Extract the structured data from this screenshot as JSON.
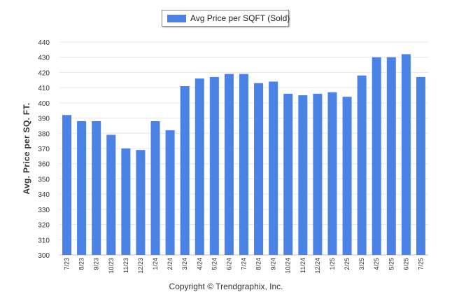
{
  "chart_data": {
    "type": "bar",
    "ylabel": "Avg. Price per SQ. FT.",
    "ylim": [
      300,
      440
    ],
    "ytick_step": 10,
    "grid": true,
    "legend_position": "top-center",
    "series": [
      {
        "name": "Avg Price per SQFT (Sold)",
        "color": "#4a82e6",
        "values": [
          392,
          388,
          388,
          379,
          370,
          369,
          388,
          382,
          411,
          416,
          417,
          419,
          419,
          413,
          414,
          406,
          405,
          406,
          407,
          404,
          418,
          430,
          430,
          432,
          417
        ]
      }
    ],
    "categories": [
      "7/23",
      "8/23",
      "9/23",
      "10/23",
      "11/23",
      "12/23",
      "1/24",
      "2/24",
      "3/24",
      "4/24",
      "5/24",
      "6/24",
      "7/24",
      "8/24",
      "9/24",
      "10/24",
      "11/24",
      "12/24",
      "1/25",
      "2/25",
      "3/25",
      "4/25",
      "5/25",
      "6/25",
      "7/25"
    ]
  },
  "footer": {
    "copyright": "Copyright © Trendgraphix, Inc."
  }
}
